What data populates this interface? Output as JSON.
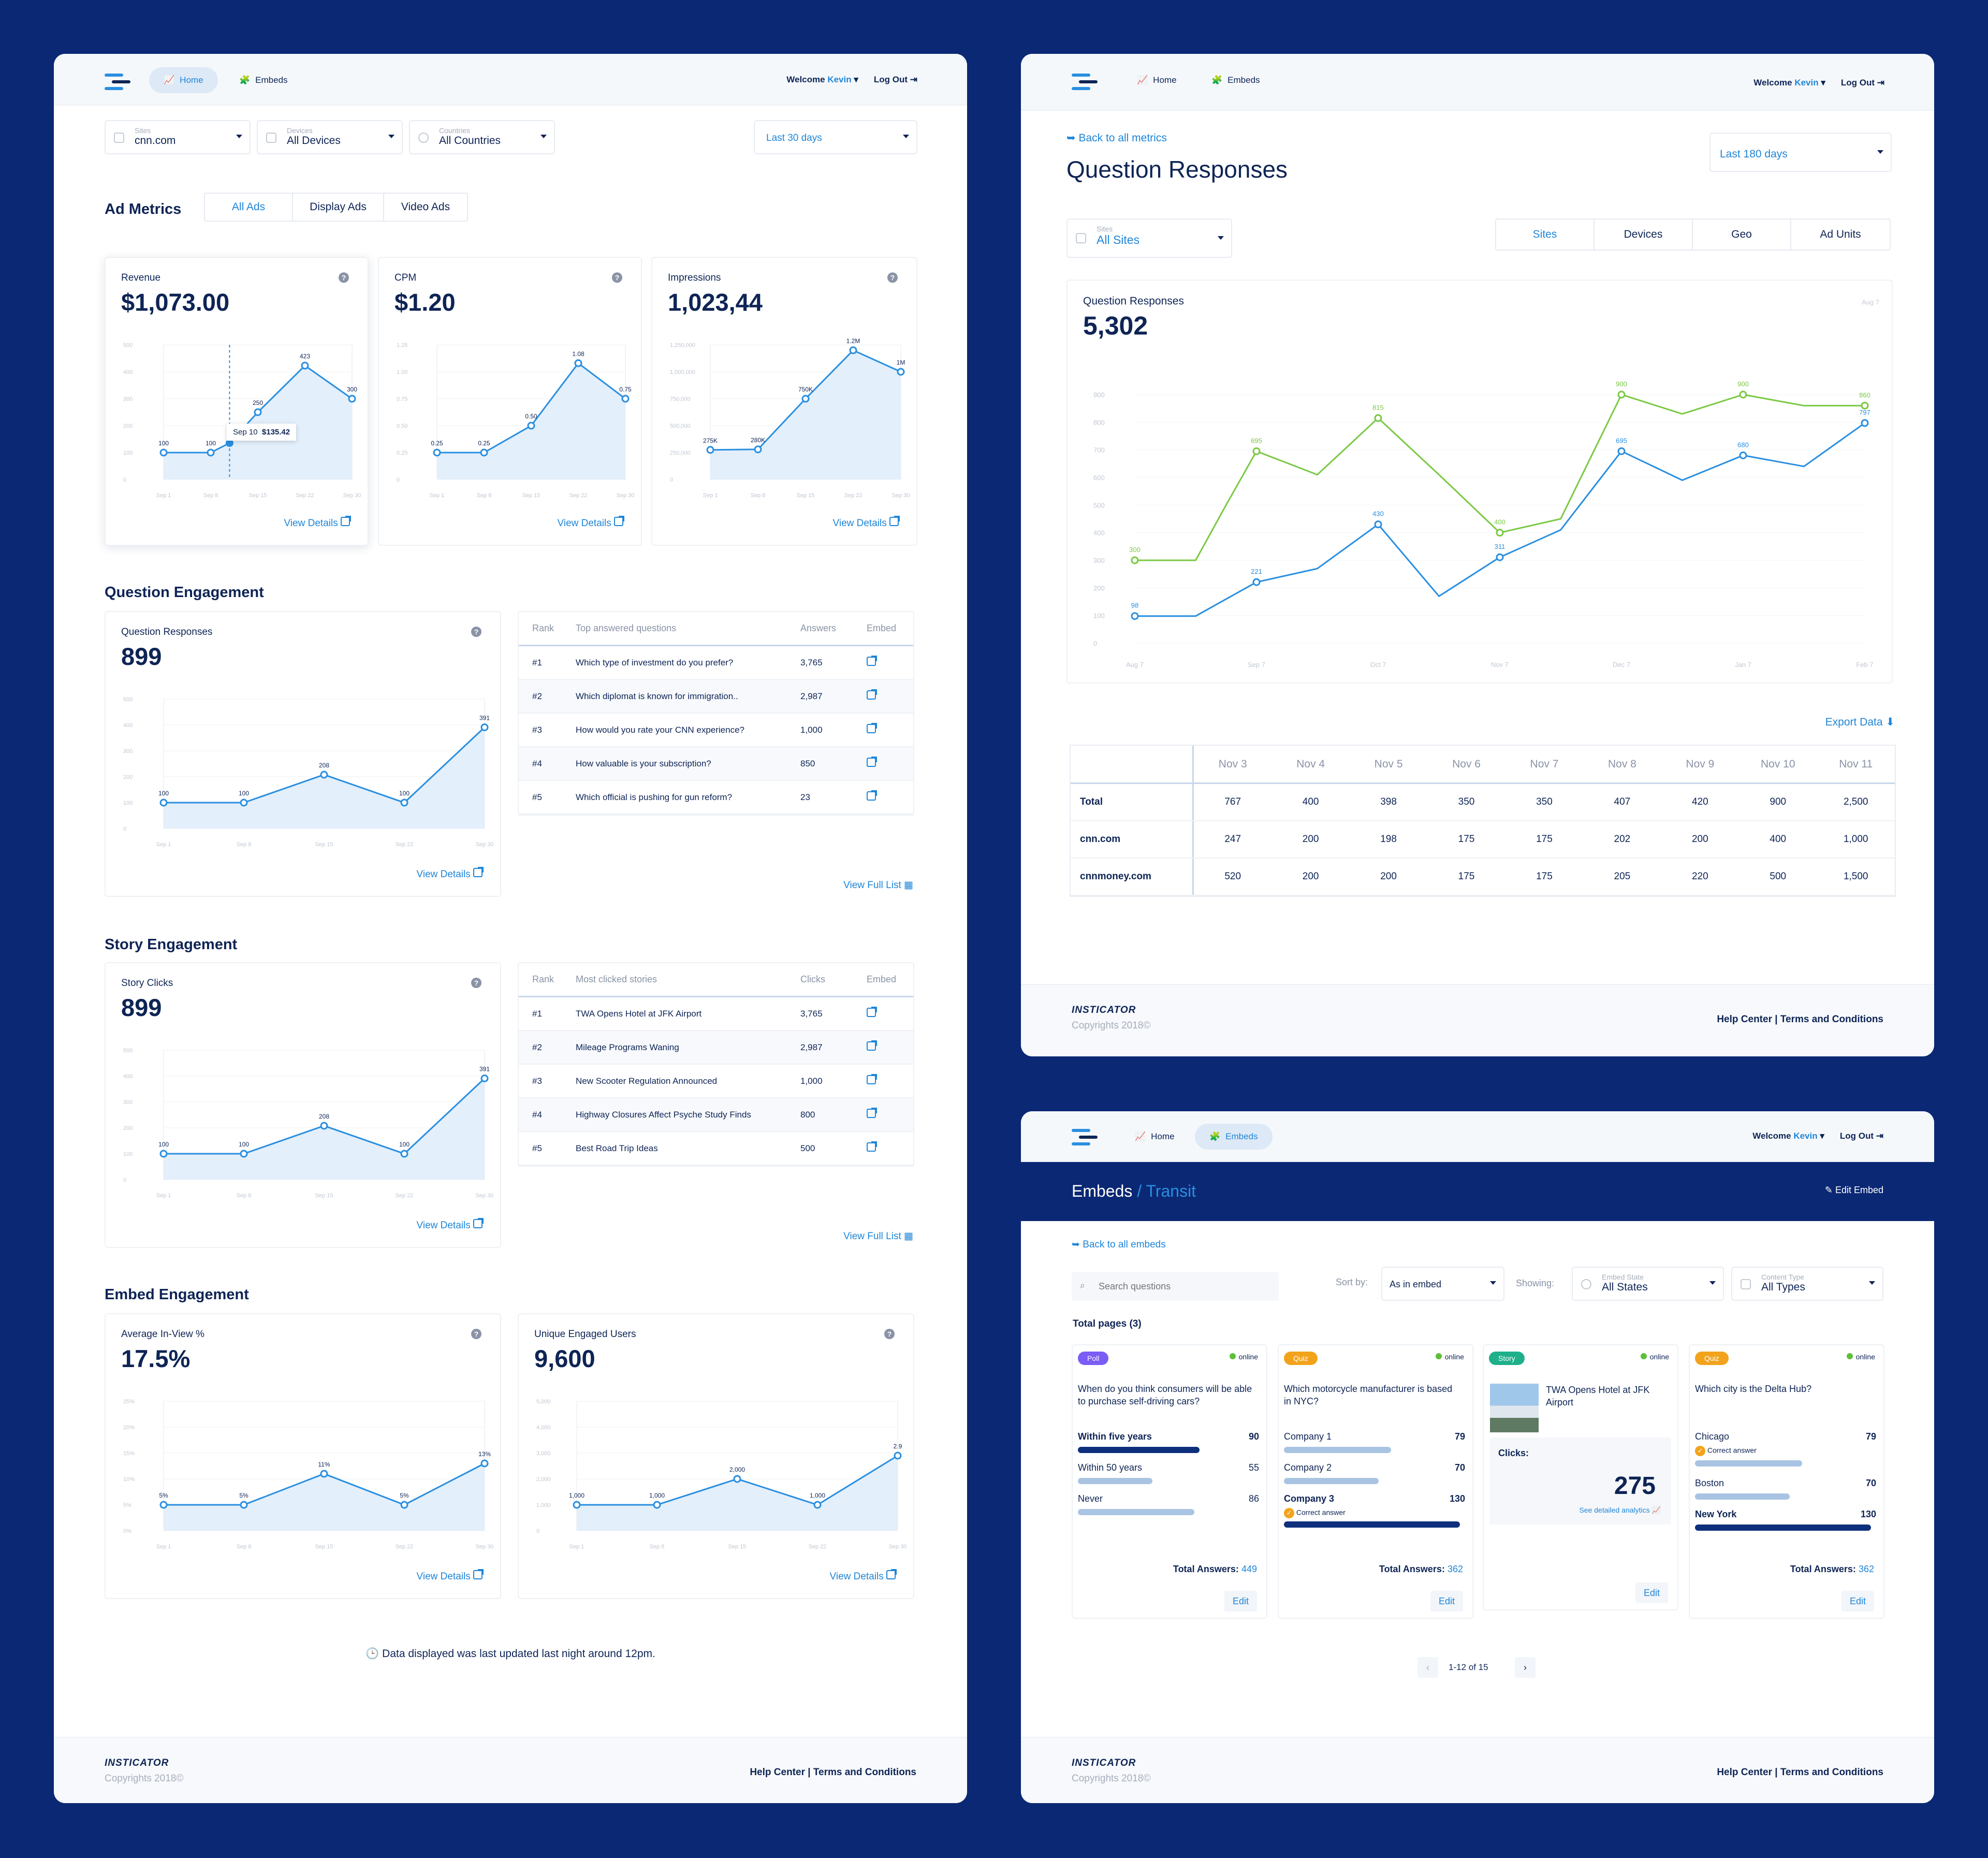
{
  "left": {
    "nav": {
      "home": "Home",
      "embeds": "Embeds",
      "welcome": "Welcome",
      "user": "Kevin",
      "logout": "Log Out"
    },
    "filters": {
      "sites": {
        "label": "Sites",
        "value": "cnn.com"
      },
      "devices": {
        "label": "Devices",
        "value": "All Devices"
      },
      "countries": {
        "label": "Countries",
        "value": "All Countries"
      },
      "range": "Last 30 days"
    },
    "ad_metrics": {
      "title": "Ad Metrics",
      "tabs": [
        "All Ads",
        "Display Ads",
        "Video Ads"
      ],
      "cards": [
        {
          "label": "Revenue",
          "value": "$1,073.00",
          "link": "View Details",
          "tooltip_date": "Sep 10",
          "tooltip_value": "$135.42"
        },
        {
          "label": "CPM",
          "value": "$1.20",
          "link": "View Details"
        },
        {
          "label": "Impressions",
          "value": "1,023,44",
          "link": "View Details"
        }
      ]
    },
    "question_engagement": {
      "title": "Question Engagement",
      "card": {
        "label": "Question Responses",
        "value": "899",
        "link": "View Details"
      },
      "table": {
        "headers": [
          "Rank",
          "Top answered questions",
          "Answers",
          "Embed"
        ],
        "rows": [
          {
            "rank": "#1",
            "text": "Which type of investment do you prefer?",
            "count": "3,765"
          },
          {
            "rank": "#2",
            "text": "Which diplomat is known for immigration..",
            "count": "2,987"
          },
          {
            "rank": "#3",
            "text": "How would you rate your CNN experience?",
            "count": "1,000"
          },
          {
            "rank": "#4",
            "text": "How valuable is your subscription?",
            "count": "850"
          },
          {
            "rank": "#5",
            "text": "Which official is pushing for gun reform?",
            "count": "23"
          }
        ],
        "link": "View Full List"
      }
    },
    "story_engagement": {
      "title": "Story Engagement",
      "card": {
        "label": "Story Clicks",
        "value": "899",
        "link": "View Details"
      },
      "table": {
        "headers": [
          "Rank",
          "Most clicked stories",
          "Clicks",
          "Embed"
        ],
        "rows": [
          {
            "rank": "#1",
            "text": "TWA Opens Hotel at JFK Airport",
            "count": "3,765"
          },
          {
            "rank": "#2",
            "text": "Mileage Programs Waning",
            "count": "2,987"
          },
          {
            "rank": "#3",
            "text": "New Scooter Regulation Announced",
            "count": "1,000"
          },
          {
            "rank": "#4",
            "text": "Highway Closures Affect Psyche Study Finds",
            "count": "800"
          },
          {
            "rank": "#5",
            "text": "Best Road Trip Ideas",
            "count": "500"
          }
        ],
        "link": "View Full List"
      }
    },
    "embed_engagement": {
      "title": "Embed Engagement",
      "cards": [
        {
          "label": "Average In-View %",
          "value": "17.5%",
          "link": "View Details"
        },
        {
          "label": "Unique Engaged Users",
          "value": "9,600",
          "link": "View Details"
        }
      ]
    },
    "note": "Data displayed was last updated last night around 12pm.",
    "footer": {
      "brand": "INSTICATOR",
      "copyright": "Copyrights 2018©",
      "links": "Help Center  |  Terms and Conditions"
    }
  },
  "detail": {
    "nav": {
      "home": "Home",
      "embeds": "Embeds",
      "welcome": "Welcome",
      "user": "Kevin",
      "logout": "Log Out"
    },
    "back": "Back to all metrics",
    "title": "Question Responses",
    "range": "Last 180 days",
    "sites": {
      "label": "Sites",
      "value": "All Sites"
    },
    "tabs": [
      "Sites",
      "Devices",
      "Geo",
      "Ad Units"
    ],
    "card": {
      "label": "Question Responses",
      "value": "5,302",
      "corner": "Aug 7"
    },
    "export": "Export Data",
    "table": {
      "columns": [
        "Nov 3",
        "Nov 4",
        "Nov 5",
        "Nov 6",
        "Nov 7",
        "Nov 8",
        "Nov 9",
        "Nov 10",
        "Nov 11"
      ],
      "rows": [
        {
          "name": "Total",
          "values": [
            "767",
            "400",
            "398",
            "350",
            "350",
            "407",
            "420",
            "900",
            "2,500"
          ]
        },
        {
          "name": "cnn.com",
          "values": [
            "247",
            "200",
            "198",
            "175",
            "175",
            "202",
            "200",
            "400",
            "1,000"
          ]
        },
        {
          "name": "cnnmoney.com",
          "values": [
            "520",
            "200",
            "200",
            "175",
            "175",
            "205",
            "220",
            "500",
            "1,500"
          ]
        }
      ]
    },
    "footer": {
      "brand": "INSTICATOR",
      "copyright": "Copyrights 2018©",
      "links": "Help Center  |  Terms and Conditions"
    }
  },
  "embeds": {
    "nav": {
      "home": "Home",
      "embeds": "Embeds",
      "welcome": "Welcome",
      "user": "Kevin",
      "logout": "Log Out"
    },
    "title": "Embeds",
    "subtitle": "/ Transit",
    "edit": "Edit Embed",
    "back": "Back to all embeds",
    "search_placeholder": "Search questions",
    "sort_label": "Sort by:",
    "sort_value": "As in embed",
    "showing_label": "Showing:",
    "state": {
      "label": "Embed State",
      "value": "All States"
    },
    "type": {
      "label": "Content Type",
      "value": "All Types"
    },
    "total": "Total pages (3)",
    "online": "online",
    "total_label": "Total Answers:",
    "edit_label": "Edit",
    "correct": "Correct answer",
    "cards": [
      {
        "tag": "Poll",
        "question": "When do you think consumers will be able to purchase self-driving cars?",
        "options": [
          {
            "text": "Within five years",
            "count": "90"
          },
          {
            "text": "Within 50 years",
            "count": "55"
          },
          {
            "text": "Never",
            "count": "86"
          }
        ],
        "total": "449"
      },
      {
        "tag": "Quiz",
        "question": "Which motorcycle manufacturer is based in NYC?",
        "options": [
          {
            "text": "Company 1",
            "count": "79"
          },
          {
            "text": "Company 2",
            "count": "70"
          },
          {
            "text": "Company 3",
            "count": "130"
          }
        ],
        "total": "362"
      },
      {
        "tag": "Story",
        "question": "TWA Opens Hotel at JFK Airport",
        "clicks_label": "Clicks:",
        "clicks": "275",
        "analytics": "See detailed analytics"
      },
      {
        "tag": "Quiz",
        "question": "Which city is the Delta Hub?",
        "options": [
          {
            "text": "Chicago",
            "count": "79"
          },
          {
            "text": "Boston",
            "count": "70"
          },
          {
            "text": "New York",
            "count": "130"
          }
        ],
        "total": "362"
      }
    ],
    "pager": "1-12 of 15",
    "footer": {
      "brand": "INSTICATOR",
      "copyright": "Copyrights 2018©",
      "links": "Help Center  |  Terms and Conditions"
    }
  },
  "chart_data": [
    {
      "type": "area",
      "id": "revenue",
      "x": [
        "Sep 1",
        "Sep 8",
        "Sep 15",
        "Sep 22",
        "Sep 30"
      ],
      "y_ticks": [
        "500",
        "400",
        "300",
        "200",
        "100",
        "0"
      ],
      "points": [
        [
          0,
          100
        ],
        [
          1,
          100
        ],
        [
          1.4,
          135.42
        ],
        [
          2,
          250
        ],
        [
          3,
          423
        ],
        [
          4,
          300
        ]
      ],
      "labels": [
        "100",
        "100",
        "",
        "250",
        "423",
        "300"
      ],
      "ylim": [
        0,
        500
      ]
    },
    {
      "type": "area",
      "id": "cpm",
      "x": [
        "Sep 1",
        "Sep 8",
        "Sep 15",
        "Sep 22",
        "Sep 30"
      ],
      "y_ticks": [
        "1.25",
        "1.00",
        "0.75",
        "0.50",
        "0.25",
        "0"
      ],
      "points": [
        [
          0,
          0.25
        ],
        [
          1,
          0.25
        ],
        [
          2,
          0.5
        ],
        [
          3,
          1.08
        ],
        [
          4,
          0.75
        ]
      ],
      "labels": [
        "0.25",
        "0.25",
        "0.50",
        "1.08",
        "0.75"
      ],
      "ylim": [
        0,
        1.25
      ]
    },
    {
      "type": "area",
      "id": "impressions",
      "x": [
        "Sep 1",
        "Sep 8",
        "Sep 15",
        "Sep 22",
        "Sep 30"
      ],
      "y_ticks": [
        "1,250,000",
        "1,000,000",
        "750,000",
        "500,000",
        "250,000",
        "0"
      ],
      "points": [
        [
          0,
          275000
        ],
        [
          1,
          280000
        ],
        [
          2,
          750000
        ],
        [
          3,
          1200000
        ],
        [
          4,
          1000000
        ]
      ],
      "labels": [
        "275K",
        "280K",
        "750K",
        "1.2M",
        "1M"
      ],
      "ylim": [
        0,
        1250000
      ]
    },
    {
      "type": "area",
      "id": "question",
      "x": [
        "Sep 1",
        "Sep 8",
        "Sep 15",
        "Sep 22",
        "Sep 30"
      ],
      "y_ticks": [
        "500",
        "400",
        "300",
        "200",
        "100",
        "0"
      ],
      "points": [
        [
          0,
          100
        ],
        [
          1,
          100
        ],
        [
          2,
          208
        ],
        [
          3,
          100
        ],
        [
          4,
          391
        ]
      ],
      "labels": [
        "100",
        "100",
        "208",
        "100",
        "391"
      ],
      "ylim": [
        0,
        500
      ]
    },
    {
      "type": "area",
      "id": "story",
      "x": [
        "Sep 1",
        "Sep 8",
        "Sep 15",
        "Sep 22",
        "Sep 30"
      ],
      "y_ticks": [
        "500",
        "400",
        "300",
        "200",
        "100",
        "0"
      ],
      "points": [
        [
          0,
          100
        ],
        [
          1,
          100
        ],
        [
          2,
          208
        ],
        [
          3,
          100
        ],
        [
          4,
          391
        ]
      ],
      "labels": [
        "100",
        "100",
        "208",
        "100",
        "391"
      ],
      "ylim": [
        0,
        500
      ]
    },
    {
      "type": "area",
      "id": "inview",
      "x": [
        "Sep 1",
        "Sep 8",
        "Sep 15",
        "Sep 22",
        "Sep 30"
      ],
      "y_ticks": [
        "25%",
        "20%",
        "15%",
        "10%",
        "5%",
        "0%"
      ],
      "points": [
        [
          0,
          5
        ],
        [
          1,
          5
        ],
        [
          2,
          11
        ],
        [
          3,
          5
        ],
        [
          4,
          13
        ]
      ],
      "labels": [
        "5%",
        "5%",
        "11%",
        "5%",
        "13%"
      ],
      "ylim": [
        0,
        25
      ]
    },
    {
      "type": "area",
      "id": "users",
      "x": [
        "Sep 1",
        "Sep 8",
        "Sep 15",
        "Sep 22",
        "Sep 30"
      ],
      "y_ticks": [
        "5,000",
        "4,000",
        "3,000",
        "2,000",
        "1,000",
        "0"
      ],
      "points": [
        [
          0,
          1000
        ],
        [
          1,
          1000
        ],
        [
          2,
          2000
        ],
        [
          3,
          1000
        ],
        [
          4,
          2900
        ]
      ],
      "labels": [
        "1,000",
        "1,000",
        "2,000",
        "1,000",
        "2.9"
      ],
      "ylim": [
        0,
        5000
      ]
    },
    {
      "type": "line",
      "id": "detail",
      "x": [
        "Aug 7",
        "Sep 7",
        "Oct 7",
        "Nov 7",
        "Dec 7",
        "Jan 7",
        "Feb 7"
      ],
      "y_ticks": [
        "900",
        "800",
        "700",
        "600",
        "500",
        "400",
        "300",
        "200",
        "100",
        "0"
      ],
      "ylim": [
        0,
        900
      ],
      "series": [
        {
          "color": "#7ac943",
          "points": [
            [
              0,
              300
            ],
            [
              0.5,
              300
            ],
            [
              0.75,
              500
            ],
            [
              1,
              695
            ],
            [
              1.5,
              610
            ],
            [
              2,
              815
            ],
            [
              2.5,
              610
            ],
            [
              3,
              400
            ],
            [
              3.5,
              450
            ],
            [
              4,
              900
            ],
            [
              4.5,
              830
            ],
            [
              5,
              900
            ],
            [
              5.5,
              860
            ],
            [
              6,
              860
            ]
          ],
          "labels": {
            "0": "300",
            "3": "695",
            "5": "815",
            "7": "400",
            "9": "900",
            "11": "900",
            "13": "860"
          }
        },
        {
          "color": "#2a8fe0",
          "points": [
            [
              0,
              98
            ],
            [
              0.5,
              98
            ],
            [
              1,
              221
            ],
            [
              1.5,
              270
            ],
            [
              2,
              430
            ],
            [
              2.5,
              170
            ],
            [
              3,
              311
            ],
            [
              3.5,
              410
            ],
            [
              4,
              695
            ],
            [
              4.5,
              590
            ],
            [
              5,
              680
            ],
            [
              5.5,
              640
            ],
            [
              6,
              797
            ]
          ],
          "labels": {
            "0": "98",
            "2": "221",
            "4": "430",
            "6": "311",
            "8": "695",
            "10": "680",
            "12": "797"
          }
        }
      ]
    }
  ]
}
